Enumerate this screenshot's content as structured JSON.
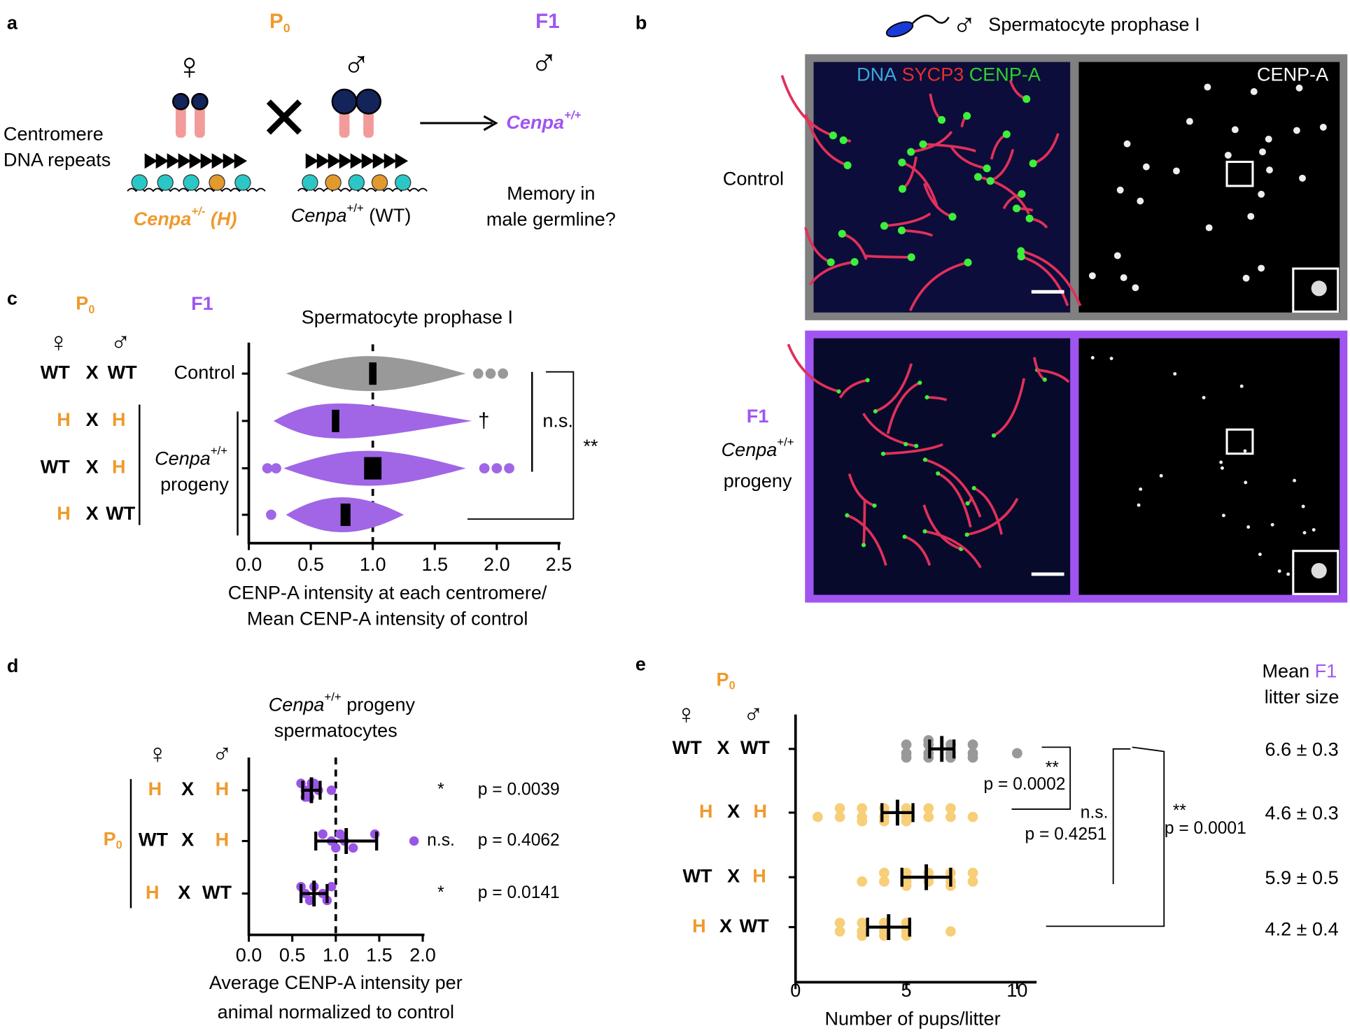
{
  "label_colors": {
    "H": "#ef9a2c",
    "X": "#000000",
    "WT": "#000000"
  },
  "panel_a": {
    "letter": "a",
    "p0": "P",
    "p0_sub": "0",
    "f1": "F1",
    "female": "♀",
    "male": "♂",
    "male_f1": "♂",
    "repeats": [
      "Centromere",
      "DNA repeats"
    ],
    "het": {
      "italic": "Cenpa",
      "sup": "+/-",
      "tail": " (H)"
    },
    "wt": {
      "italic": "Cenpa",
      "sup": "+/+",
      "tail": " (WT)"
    },
    "f1_geno": {
      "italic": "Cenpa",
      "sup": "+/+"
    },
    "question": [
      "Memory in",
      "male germline?"
    ]
  },
  "panel_b": {
    "letter": "b",
    "male": "♂",
    "title": "Spermatocyte prophase I",
    "channels": [
      {
        "name": "DNA",
        "color": "#3aa8e0"
      },
      {
        "name": "SYCP3",
        "color": "#e53030"
      },
      {
        "name": "CENP-A",
        "color": "#2fd02f"
      }
    ],
    "right_channel": "CENP-A",
    "control": "Control",
    "f1": "F1",
    "progeny": {
      "italic": "Cenpa",
      "sup": "+/+",
      "line2": "progeny"
    },
    "control_frame": "#808080",
    "f1_frame": "#a055f0"
  },
  "panel_c": {
    "letter": "c",
    "type": "swarm",
    "title": "Spermatocyte prophase I",
    "p0": "P",
    "p0_sub": "0",
    "f1": "F1",
    "female": "♀",
    "male": "♂",
    "rows": [
      [
        "WT",
        "X",
        "WT"
      ],
      [
        "H",
        "X",
        "H"
      ],
      [
        "WT",
        "X",
        "H"
      ],
      [
        "H",
        "X",
        "WT"
      ]
    ],
    "control": "Control",
    "progeny": {
      "italic": "Cenpa",
      "sup": "+/+",
      "line2": "progeny"
    },
    "xlabel": [
      "CENP-A intensity at each centromere/",
      "Mean CENP-A intensity of control"
    ],
    "xlim": [
      0,
      2.5
    ],
    "xticks": [
      {
        "value": 0,
        "label": "0.0"
      },
      0.5,
      {
        "value": 1,
        "label": "1.0"
      },
      1.5,
      {
        "value": 2,
        "label": "2.0"
      },
      2.5
    ],
    "reference": 1.0,
    "groups": [
      {
        "color": "#999999",
        "mean": 1.0,
        "error": 0.03,
        "min": 0.3,
        "max": 1.75,
        "outliers": [
          1.85,
          1.95,
          2.05
        ]
      },
      {
        "color": "#a066e6",
        "mean": 0.7,
        "error": 0.03,
        "min": 0.2,
        "max": 1.8,
        "outliers": []
      },
      {
        "color": "#a066e6",
        "mean": 1.0,
        "error": 0.07,
        "min": 0.28,
        "max": 1.75,
        "outliers": [
          0.15,
          0.22,
          1.9,
          2.0,
          2.1
        ]
      },
      {
        "color": "#a066e6",
        "mean": 0.78,
        "error": 0.04,
        "min": 0.3,
        "max": 1.25,
        "outliers": [
          0.18
        ]
      }
    ],
    "dagger": "†",
    "ns": "n.s.",
    "sig": "**"
  },
  "panel_d": {
    "letter": "d",
    "type": "dot",
    "title": {
      "italic": "Cenpa",
      "sup": "+/+",
      "tail": " progeny"
    },
    "title2": "spermatocytes",
    "female": "♀",
    "male": "♂",
    "p0": "P",
    "p0_sub": "0",
    "rows": [
      [
        "H",
        "X",
        "H"
      ],
      [
        "WT",
        "X",
        "H"
      ],
      [
        "H",
        "X",
        "WT"
      ]
    ],
    "xlabel": [
      "Average CENP-A intensity per",
      "animal normalized to control"
    ],
    "xlim": [
      0,
      2
    ],
    "xticks": [
      {
        "value": 0,
        "label": "0.0"
      },
      0.5,
      {
        "value": 1,
        "label": "1.0"
      },
      1.5,
      {
        "value": 2,
        "label": "2.0"
      }
    ],
    "reference": 1.0,
    "groups": [
      {
        "color": "#9b55e6",
        "points": [
          0.6,
          0.65,
          0.7,
          0.75,
          0.8,
          0.65,
          0.72,
          0.95
        ],
        "mean": 0.72,
        "error": 0.1,
        "sig": "*",
        "p": "p = 0.0039"
      },
      {
        "color": "#9b55e6",
        "points": [
          0.85,
          0.95,
          1.0,
          1.05,
          1.1,
          1.2,
          1.45,
          1.9
        ],
        "mean": 1.12,
        "error": 0.35,
        "sig": "n.s.",
        "p": "p = 0.4062"
      },
      {
        "color": "#9b55e6",
        "points": [
          0.6,
          0.65,
          0.7,
          0.75,
          0.85,
          0.9,
          0.95
        ],
        "mean": 0.75,
        "error": 0.15,
        "sig": "*",
        "p": "p = 0.0141"
      }
    ]
  },
  "panel_e": {
    "letter": "e",
    "type": "dot",
    "p0": "P",
    "p0_sub": "0",
    "female": "♀",
    "male": "♂",
    "rows": [
      [
        "WT",
        "X",
        "WT"
      ],
      [
        "H",
        "X",
        "H"
      ],
      [
        "WT",
        "X",
        "H"
      ],
      [
        "H",
        "X",
        "WT"
      ]
    ],
    "xlabel": "Number of pups/litter",
    "xlim": [
      0,
      10.8
    ],
    "xticks": [
      0,
      5,
      10
    ],
    "header": {
      "mean": "Mean",
      "f1": "F1",
      "litter": "litter size"
    },
    "groups": [
      {
        "color": "#999999",
        "points": [
          5,
          5,
          5,
          6,
          6,
          6,
          6,
          7,
          7,
          7,
          8,
          8,
          8,
          10
        ],
        "mean": 6.6,
        "error": 0.55,
        "litter": "6.6 ± 0.3"
      },
      {
        "color": "#f7cf78",
        "points": [
          1,
          2,
          2,
          3,
          3,
          3,
          4,
          4,
          4,
          5,
          5,
          5,
          6,
          6,
          7,
          7,
          8
        ],
        "mean": 4.6,
        "error": 0.7,
        "litter": "4.6 ± 0.3"
      },
      {
        "color": "#f7cf78",
        "points": [
          3,
          4,
          4,
          5,
          5,
          5,
          6,
          6,
          7,
          7,
          7,
          8,
          8
        ],
        "mean": 5.9,
        "error": 1.1,
        "litter": "5.9 ± 0.5"
      },
      {
        "color": "#f7cf78",
        "points": [
          2,
          2,
          3,
          3,
          3,
          4,
          4,
          4,
          5,
          5,
          5,
          7
        ],
        "mean": 4.2,
        "error": 0.95,
        "litter": "4.2 ± 0.4"
      }
    ],
    "brackets": [
      {
        "sig": "**",
        "p": "p = 0.0002"
      },
      {
        "sig": "n.s.",
        "p": "p = 0.4251"
      },
      {
        "sig": "**",
        "p": "p = 0.0001"
      }
    ]
  }
}
